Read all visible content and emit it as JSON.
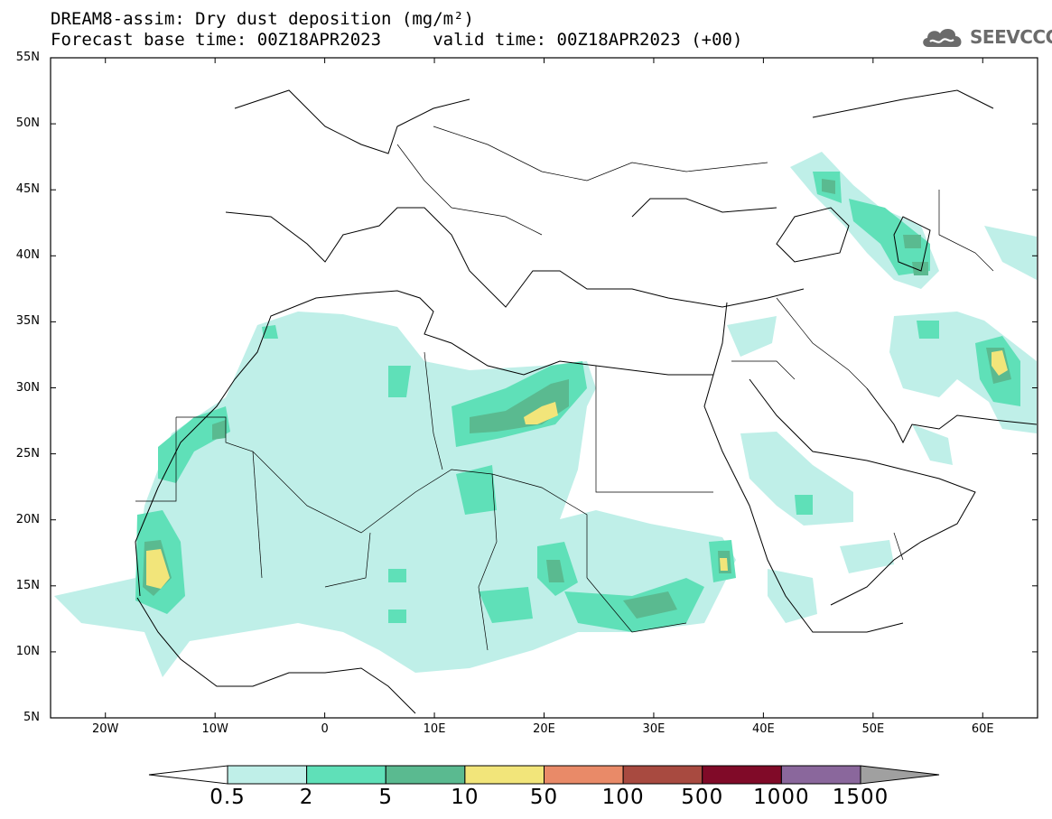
{
  "title": {
    "line1": "DREAM8-assim: Dry dust deposition (mg/m²)",
    "line2": "Forecast base time: 00Z18APR2023     valid time: 00Z18APR2023 (+00)"
  },
  "logo": {
    "text": "SEEVCCC",
    "icon": "cloud-icon"
  },
  "map": {
    "lon_range": [
      -25,
      65
    ],
    "lat_range": [
      5,
      55
    ],
    "lat_labels": [
      "55N",
      "50N",
      "45N",
      "40N",
      "35N",
      "30N",
      "25N",
      "20N",
      "15N",
      "10N",
      "5N"
    ],
    "lon_labels": [
      "20W",
      "10W",
      "0",
      "10E",
      "20E",
      "30E",
      "40E",
      "50E",
      "60E"
    ]
  },
  "colorbar": {
    "labels": [
      "0.5",
      "2",
      "5",
      "10",
      "50",
      "100",
      "500",
      "1000",
      "1500"
    ],
    "colors": [
      "#ffffff",
      "#bfefe8",
      "#5fe0b8",
      "#5aba90",
      "#f2e57a",
      "#e98a68",
      "#a84a40",
      "#800a28",
      "#8a679c",
      "#a0a0a0"
    ]
  },
  "palette": {
    "level1": "#bfefe8",
    "level2": "#5fe0b8",
    "level3": "#5aba90",
    "level4": "#f2e57a"
  }
}
